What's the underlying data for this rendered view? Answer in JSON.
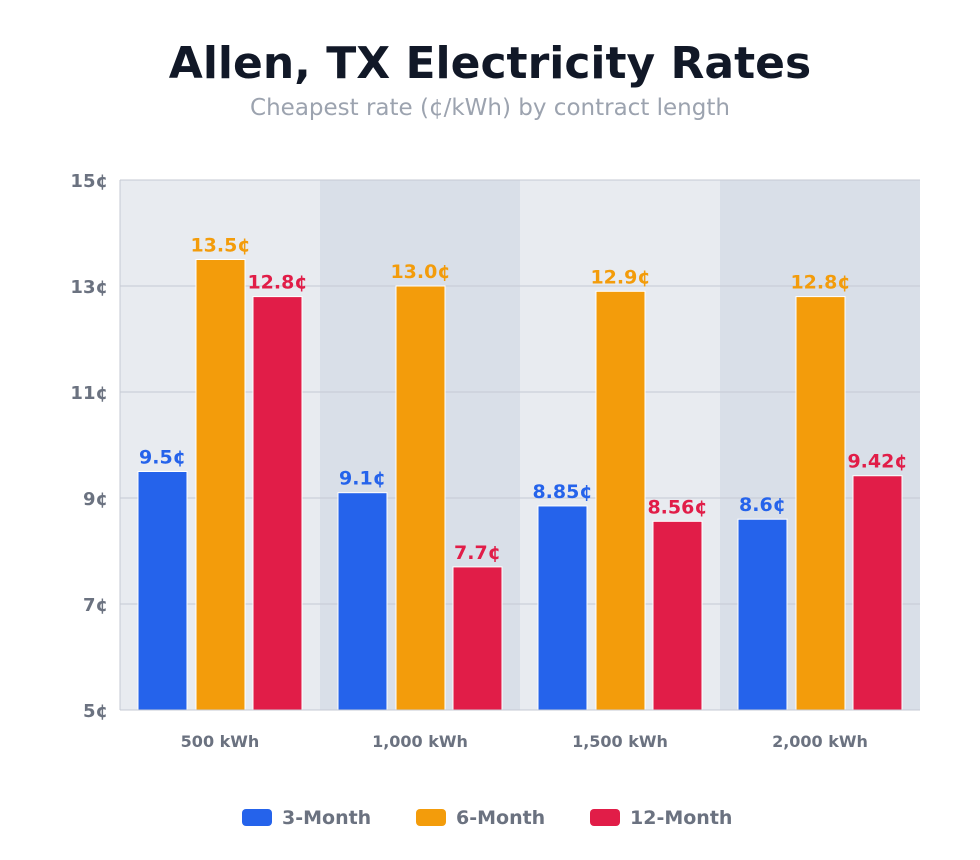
{
  "chart_data": {
    "type": "bar",
    "title": "Allen, TX Electricity Rates",
    "subtitle": "Cheapest rate (¢/kWh) by contract length",
    "categories": [
      "500 kWh",
      "1,000 kWh",
      "1,500 kWh",
      "2,000 kWh"
    ],
    "series": [
      {
        "name": "3-Month",
        "color": "#2563eb",
        "values": [
          9.5,
          9.1,
          8.85,
          8.6
        ],
        "labels": [
          "9.5¢",
          "9.1¢",
          "8.85¢",
          "8.6¢"
        ]
      },
      {
        "name": "6-Month",
        "color": "#f39c0b",
        "values": [
          13.5,
          13.0,
          12.9,
          12.8
        ],
        "labels": [
          "13.5¢",
          "13.0¢",
          "12.9¢",
          "12.8¢"
        ]
      },
      {
        "name": "12-Month",
        "color": "#e11d48",
        "values": [
          12.8,
          7.7,
          8.56,
          9.42
        ],
        "labels": [
          "12.8¢",
          "7.7¢",
          "8.56¢",
          "9.42¢"
        ]
      }
    ],
    "ylim": [
      5,
      15
    ],
    "yticks": [
      5,
      7,
      9,
      11,
      13,
      15
    ],
    "ytick_labels": [
      "5¢",
      "7¢",
      "9¢",
      "11¢",
      "13¢",
      "15¢"
    ],
    "grid": true,
    "legend_position": "bottom-center",
    "band_colors": [
      "#e8ebf0",
      "#d9dfe8"
    ]
  }
}
